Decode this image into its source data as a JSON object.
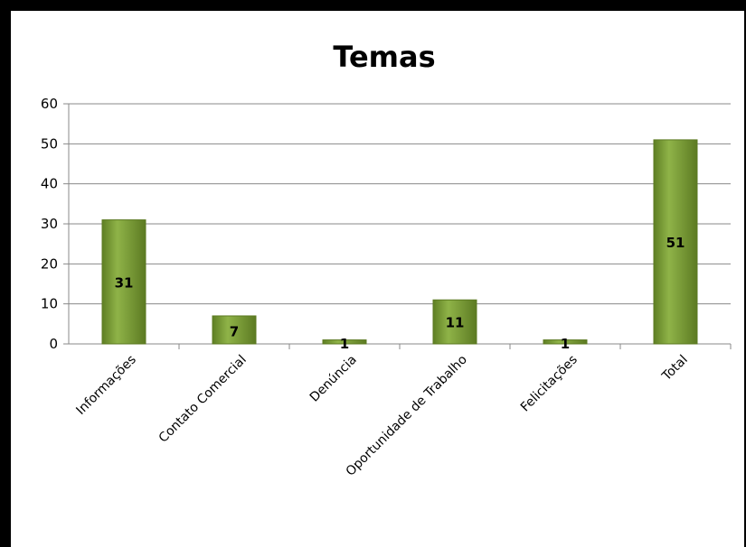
{
  "chart_data": {
    "type": "bar",
    "title": "Temas",
    "categories": [
      "Informações",
      "Contato Comercial",
      "Denúncia",
      "Oportunidade de Trabalho",
      "Felicitações",
      "Total"
    ],
    "values": [
      31,
      7,
      1,
      11,
      1,
      51
    ],
    "data_labels": [
      "31",
      "7",
      "1",
      "11",
      "1",
      "51"
    ],
    "y_ticks": [
      "0",
      "10",
      "20",
      "30",
      "40",
      "50",
      "60"
    ],
    "ylim": [
      0,
      60
    ],
    "xlabel": "",
    "ylabel": "",
    "grid": true,
    "legend": "none",
    "colors": {
      "bar": "#7a9a35",
      "bar_light": "#9bbd55",
      "bar_dark": "#5c7a22",
      "grid": "#8a8a8a",
      "axis": "#8a8a8a"
    }
  }
}
